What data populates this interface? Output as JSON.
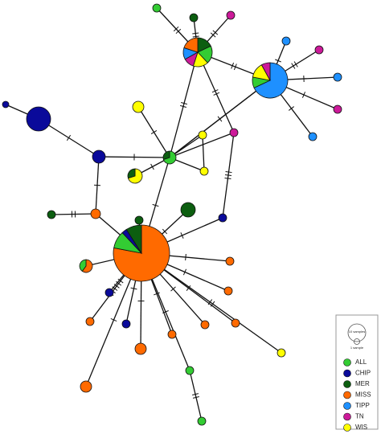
{
  "legend": {
    "scale": [
      "10 samples",
      "1 sample"
    ],
    "items": [
      {
        "label": "ALL",
        "color": "#33cc33"
      },
      {
        "label": "CHIP",
        "color": "#0a0a9a"
      },
      {
        "label": "MER",
        "color": "#0c5e10"
      },
      {
        "label": "MISS",
        "color": "#ff6a00"
      },
      {
        "label": "TIPP",
        "color": "#1e90ff"
      },
      {
        "label": "TN",
        "color": "#cc1a99"
      },
      {
        "label": "WIS",
        "color": "#ffff00"
      }
    ]
  }
}
